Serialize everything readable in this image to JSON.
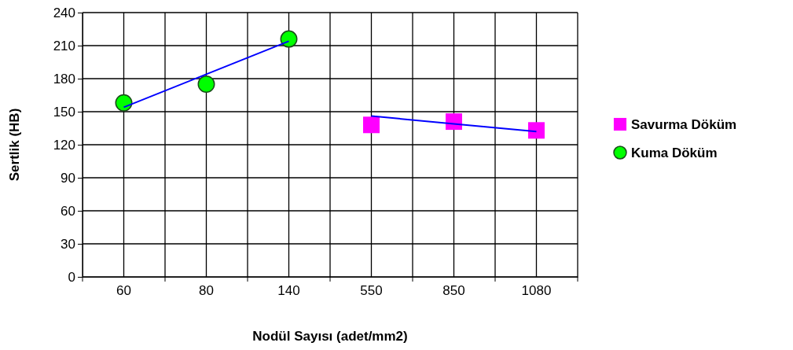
{
  "chart_data": {
    "type": "scatter",
    "xlabel": "Nodül Sayısı (adet/mm2)",
    "ylabel": "Sertlik (HB)",
    "categories": [
      "60",
      "80",
      "140",
      "550",
      "850",
      "1080"
    ],
    "ylim": [
      0,
      240
    ],
    "yticks": [
      0,
      30,
      60,
      90,
      120,
      150,
      180,
      210,
      240
    ],
    "grid": true,
    "legend": "right",
    "series": [
      {
        "name": "Savurma Döküm",
        "color": "#ff00ff",
        "marker": "square",
        "values": [
          null,
          null,
          null,
          138,
          141,
          133
        ]
      },
      {
        "name": "Kuma Döküm",
        "color": "#00ff00",
        "marker": "circle",
        "values": [
          158,
          175,
          216,
          null,
          null,
          null
        ]
      },
      {
        "type": "line",
        "color": "#0000ff",
        "marker": "none",
        "values": [
          154,
          184,
          214,
          null,
          null,
          null
        ]
      },
      {
        "type": "line",
        "color": "#0000ff",
        "marker": "none",
        "values": [
          null,
          null,
          null,
          146,
          139,
          132
        ]
      }
    ]
  }
}
